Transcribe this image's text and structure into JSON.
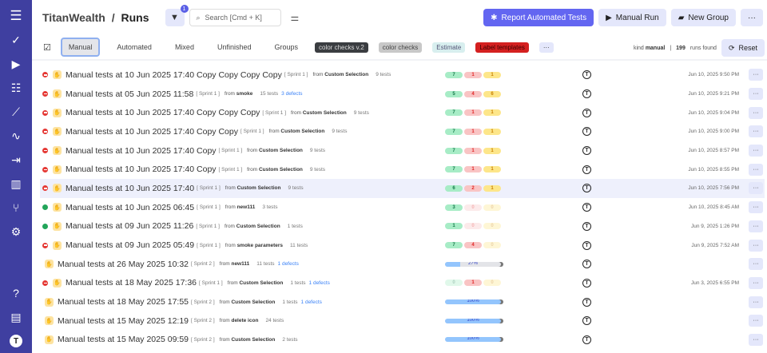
{
  "sidebar": {
    "top": [
      "menu-icon",
      "check-icon",
      "play-icon",
      "list-check-icon",
      "trend-icon",
      "pulse-icon",
      "import-icon",
      "chart-icon",
      "branch-icon",
      "gear-icon"
    ],
    "bottom": [
      "help-icon",
      "folder-icon",
      "avatar"
    ],
    "avatar_letter": "T",
    "color": "#3f3fa0"
  },
  "header": {
    "project": "TitanWealth",
    "separator": "/",
    "page": "Runs",
    "filter_count": "1",
    "search_placeholder": "Search [Cmd + K]",
    "report_button": "Report Automated Tests",
    "manual_run_button": "Manual Run",
    "new_group_button": "New Group",
    "more_button": "···"
  },
  "toolbar": {
    "tabs": [
      "Manual",
      "Automated",
      "Mixed",
      "Unfinished",
      "Groups"
    ],
    "active_tab": "Manual",
    "labels": [
      {
        "text": "color checks v.2",
        "bg": "#3a3d41",
        "fg": "#ddd"
      },
      {
        "text": "color checks",
        "bg": "#c8c8c8",
        "fg": "#444"
      },
      {
        "text": "Estimate",
        "bg": "#d8efef",
        "fg": "#557"
      },
      {
        "text": "Label templates",
        "bg": "#d42020",
        "fg": "#3a0000"
      }
    ],
    "more_labels": "···",
    "kind_label": "kind",
    "kind_value": "manual",
    "runs_count": "199",
    "runs_found": "runs found",
    "reset_button": "Reset"
  },
  "runs": [
    {
      "status": "fail",
      "title": "Manual tests at 10 Jun 2025 17:40 Copy Copy Copy Copy",
      "sprint": "[ Sprint 1 ]",
      "from": "Custom Selection",
      "tests": "9 tests",
      "defects": "",
      "stats": [
        "7",
        "1",
        "1"
      ],
      "date": "Jun 10, 2025 9:50 PM"
    },
    {
      "status": "fail",
      "title": "Manual tests at 05 Jun 2025 11:58",
      "sprint": "[ Sprint 1 ]",
      "from": "smoke",
      "tests": "15 tests",
      "defects": "3 defects",
      "stats": [
        "5",
        "4",
        "6"
      ],
      "date": "Jun 10, 2025 9:21 PM"
    },
    {
      "status": "fail",
      "title": "Manual tests at 10 Jun 2025 17:40 Copy Copy Copy",
      "sprint": "[ Sprint 1 ]",
      "from": "Custom Selection",
      "tests": "9 tests",
      "defects": "",
      "stats": [
        "7",
        "1",
        "1"
      ],
      "date": "Jun 10, 2025 9:04 PM"
    },
    {
      "status": "fail",
      "title": "Manual tests at 10 Jun 2025 17:40 Copy Copy",
      "sprint": "[ Sprint 1 ]",
      "from": "Custom Selection",
      "tests": "9 tests",
      "defects": "",
      "stats": [
        "7",
        "1",
        "1"
      ],
      "date": "Jun 10, 2025 9:00 PM"
    },
    {
      "status": "fail",
      "title": "Manual tests at 10 Jun 2025 17:40 Copy",
      "sprint": "[ Sprint 1 ]",
      "from": "Custom Selection",
      "tests": "9 tests",
      "defects": "",
      "stats": [
        "7",
        "1",
        "1"
      ],
      "date": "Jun 10, 2025 8:57 PM"
    },
    {
      "status": "fail",
      "title": "Manual tests at 10 Jun 2025 17:40 Copy",
      "sprint": "[ Sprint 1 ]",
      "from": "Custom Selection",
      "tests": "9 tests",
      "defects": "",
      "stats": [
        "7",
        "1",
        "1"
      ],
      "date": "Jun 10, 2025 8:55 PM"
    },
    {
      "status": "fail",
      "title": "Manual tests at 10 Jun 2025 17:40",
      "sprint": "[ Sprint 1 ]",
      "from": "Custom Selection",
      "tests": "9 tests",
      "defects": "",
      "stats": [
        "6",
        "2",
        "1"
      ],
      "date": "Jun 10, 2025 7:56 PM",
      "highlight": true
    },
    {
      "status": "pass",
      "title": "Manual tests at 10 Jun 2025 06:45",
      "sprint": "[ Sprint 1 ]",
      "from": "new111",
      "tests": "3 tests",
      "defects": "",
      "stats": [
        "3",
        "0",
        "0"
      ],
      "date": "Jun 10, 2025 8:45 AM"
    },
    {
      "status": "pass",
      "title": "Manual tests at 09 Jun 2025 11:26",
      "sprint": "[ Sprint 1 ]",
      "from": "Custom Selection",
      "tests": "1 tests",
      "defects": "",
      "stats": [
        "1",
        "0",
        "0"
      ],
      "date": "Jun 9, 2025 1:26 PM"
    },
    {
      "status": "fail",
      "title": "Manual tests at 09 Jun 2025 05:49",
      "sprint": "[ Sprint 1 ]",
      "from": "smoke parameters",
      "tests": "11 tests",
      "defects": "",
      "stats": [
        "7",
        "4",
        "0"
      ],
      "date": "Jun 9, 2025 7:52 AM"
    },
    {
      "status": "prog",
      "title": "Manual tests at 26 May 2025 10:32",
      "sprint": "[ Sprint 2 ]",
      "from": "new111",
      "tests": "11 tests",
      "defects": "1 defects",
      "progress": 27,
      "progress_label": "27%",
      "date": ""
    },
    {
      "status": "fail",
      "title": "Manual tests at 18 May 2025 17:36",
      "sprint": "[ Sprint 1 ]",
      "from": "Custom Selection",
      "tests": "1 tests",
      "defects": "1 defects",
      "stats": [
        "0",
        "1",
        "0"
      ],
      "date": "Jun 3, 2025 6:55 PM"
    },
    {
      "status": "prog",
      "title": "Manual tests at 18 May 2025 17:55",
      "sprint": "[ Sprint 2 ]",
      "from": "Custom Selection",
      "tests": "1 tests",
      "defects": "1 defects",
      "progress": 100,
      "progress_label": "100%",
      "date": ""
    },
    {
      "status": "prog",
      "title": "Manual tests at 15 May 2025 12:19",
      "sprint": "[ Sprint 2 ]",
      "from": "delete icon",
      "tests": "24 tests",
      "defects": "",
      "progress": 100,
      "progress_label": "100%",
      "date": ""
    },
    {
      "status": "prog",
      "title": "Manual tests at 15 May 2025 09:59",
      "sprint": "[ Sprint 2 ]",
      "from": "Custom Selection",
      "tests": "2 tests",
      "defects": "",
      "progress": 100,
      "progress_label": "100%",
      "date": ""
    }
  ],
  "row_common": {
    "from_prefix": "from",
    "assignee": "T",
    "more": "···"
  }
}
